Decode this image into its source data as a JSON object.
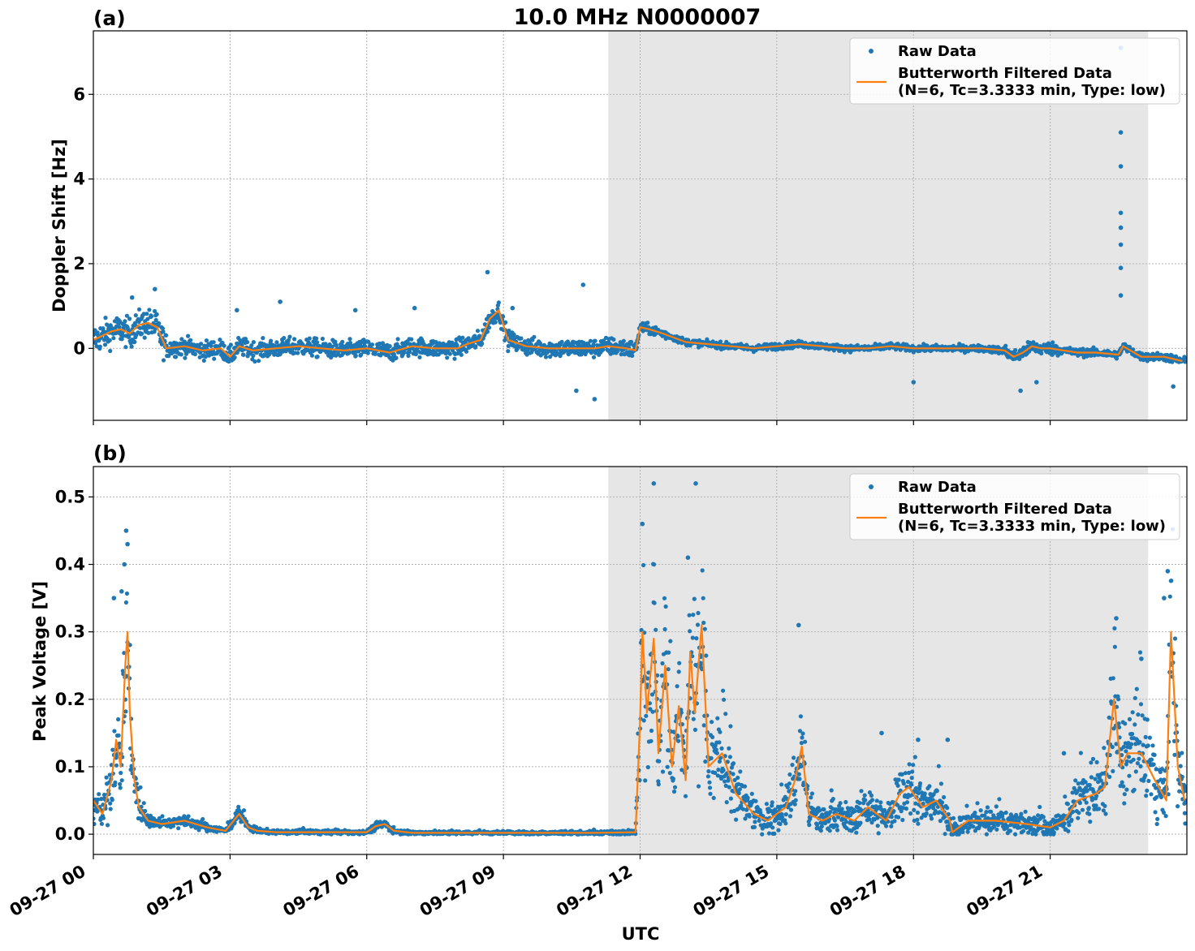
{
  "figure": {
    "title": "10.0 MHz N0000007",
    "xlabel": "UTC"
  },
  "legend": {
    "raw_label": "Raw Data",
    "filtered_label_line1": "Butterworth Filtered Data",
    "filtered_label_line2": "(N=6, Tc=3.3333 min, Type: low)"
  },
  "colors": {
    "raw": "#1f77b4",
    "filtered": "#ff7f0e",
    "shade": "#e6e6e6",
    "grid": "#b0b0b0"
  },
  "chart_data": [
    {
      "type": "scatter",
      "panel_label": "(a)",
      "ylabel": "Doppler Shift [Hz]",
      "x_unit": "hours UTC 2023-09-27",
      "xlim": [
        0,
        24
      ],
      "ylim": [
        -1.7,
        7.5
      ],
      "yticks": [
        0,
        2,
        4,
        6
      ],
      "xticks": [
        0,
        3,
        6,
        9,
        12,
        15,
        18,
        21
      ],
      "xtick_labels": [
        "09-27 00",
        "09-27 03",
        "09-27 06",
        "09-27 09",
        "09-27 12",
        "09-27 15",
        "09-27 18",
        "09-27 21"
      ],
      "grid": true,
      "legend_position": "top-right",
      "shaded_interval": [
        11.3,
        23.15
      ],
      "series": [
        {
          "name": "Butterworth Filtered Data",
          "x": [
            0,
            0.2,
            0.4,
            0.6,
            0.8,
            1.0,
            1.2,
            1.4,
            1.6,
            2.0,
            2.4,
            2.8,
            3.0,
            3.2,
            3.5,
            4.0,
            4.5,
            5.0,
            5.5,
            6.0,
            6.5,
            7.0,
            7.5,
            8.0,
            8.2,
            8.5,
            8.7,
            8.9,
            9.1,
            9.5,
            10.0,
            10.5,
            11.0,
            11.3,
            11.7,
            11.9,
            12.0,
            12.2,
            12.5,
            13.0,
            13.5,
            14.0,
            14.5,
            15.0,
            15.5,
            16.0,
            16.5,
            17.0,
            17.5,
            18.0,
            18.5,
            19.0,
            19.5,
            20.0,
            20.2,
            20.4,
            20.6,
            20.8,
            21.0,
            21.3,
            21.6,
            22.0,
            22.5,
            22.6,
            23.0,
            23.5,
            23.9
          ],
          "y": [
            0.2,
            0.3,
            0.4,
            0.45,
            0.35,
            0.55,
            0.6,
            0.5,
            0.0,
            0.05,
            -0.05,
            0.0,
            -0.2,
            0.05,
            -0.05,
            0.0,
            0.05,
            0.0,
            -0.05,
            0.0,
            -0.1,
            0.05,
            0.0,
            0.0,
            0.1,
            0.2,
            0.7,
            0.9,
            0.2,
            0.05,
            0.0,
            0.0,
            0.0,
            0.05,
            0.0,
            -0.05,
            0.5,
            0.45,
            0.35,
            0.15,
            0.1,
            0.05,
            0.0,
            0.05,
            0.1,
            0.05,
            0.0,
            0.0,
            0.05,
            0.0,
            0.0,
            0.0,
            0.0,
            -0.05,
            -0.2,
            -0.1,
            0.05,
            0.0,
            0.0,
            -0.05,
            -0.1,
            -0.1,
            -0.15,
            0.05,
            -0.2,
            -0.2,
            -0.3
          ]
        },
        {
          "name": "Raw Data",
          "outliers": {
            "x": [
              22.55,
              22.55,
              22.55,
              22.55,
              22.55,
              22.55,
              22.55,
              22.55,
              10.75,
              8.65,
              0.85,
              1.35,
              3.15,
              4.1,
              5.75,
              7.05,
              9.2,
              10.6,
              11.0,
              18.0,
              20.35,
              20.7,
              23.7
            ],
            "y": [
              7.1,
              5.1,
              4.3,
              3.2,
              2.85,
              2.45,
              1.9,
              1.25,
              1.5,
              1.8,
              1.2,
              1.4,
              0.9,
              1.1,
              0.9,
              0.95,
              0.95,
              -1.0,
              -1.2,
              -0.8,
              -1.0,
              -0.8,
              -0.9
            ]
          }
        }
      ]
    },
    {
      "type": "scatter",
      "panel_label": "(b)",
      "ylabel": "Peak Voltage [V]",
      "x_unit": "hours UTC 2023-09-27",
      "xlim": [
        0,
        24
      ],
      "ylim": [
        -0.03,
        0.545
      ],
      "yticks": [
        0.0,
        0.1,
        0.2,
        0.3,
        0.4,
        0.5
      ],
      "ytick_labels": [
        "0.0",
        "0.1",
        "0.2",
        "0.3",
        "0.4",
        "0.5"
      ],
      "xticks": [
        0,
        3,
        6,
        9,
        12,
        15,
        18,
        21
      ],
      "xtick_labels": [
        "09-27 00",
        "09-27 03",
        "09-27 06",
        "09-27 09",
        "09-27 12",
        "09-27 15",
        "09-27 18",
        "09-27 21"
      ],
      "grid": true,
      "legend_position": "top-right",
      "shaded_interval": [
        11.3,
        23.15
      ],
      "series": [
        {
          "name": "Butterworth Filtered Data",
          "x": [
            0,
            0.2,
            0.4,
            0.5,
            0.6,
            0.7,
            0.75,
            0.8,
            0.9,
            1.0,
            1.2,
            1.5,
            2.0,
            2.5,
            2.9,
            3.2,
            3.4,
            3.6,
            4.0,
            5.0,
            6.0,
            6.2,
            6.4,
            6.6,
            7.0,
            8.0,
            9.0,
            10.0,
            11.0,
            11.9,
            12.0,
            12.05,
            12.15,
            12.3,
            12.4,
            12.55,
            12.7,
            12.85,
            13.0,
            13.1,
            13.2,
            13.35,
            13.5,
            13.8,
            14.1,
            14.5,
            14.8,
            15.2,
            15.4,
            15.55,
            15.7,
            16.0,
            16.3,
            16.7,
            17.0,
            17.4,
            17.7,
            17.9,
            18.2,
            18.5,
            18.8,
            18.85,
            19.2,
            19.8,
            20.5,
            21.0,
            21.3,
            21.6,
            22.0,
            22.2,
            22.4,
            22.55,
            22.7,
            23.0,
            23.3,
            23.55,
            23.65,
            23.8,
            23.95
          ],
          "y": [
            0.05,
            0.03,
            0.08,
            0.14,
            0.1,
            0.25,
            0.3,
            0.18,
            0.08,
            0.04,
            0.02,
            0.015,
            0.02,
            0.01,
            0.005,
            0.03,
            0.01,
            0.005,
            0.003,
            0.003,
            0.003,
            0.012,
            0.015,
            0.005,
            0.002,
            0.002,
            0.002,
            0.002,
            0.002,
            0.003,
            0.17,
            0.3,
            0.18,
            0.29,
            0.12,
            0.25,
            0.1,
            0.19,
            0.08,
            0.27,
            0.18,
            0.31,
            0.1,
            0.12,
            0.06,
            0.03,
            0.02,
            0.04,
            0.08,
            0.13,
            0.03,
            0.02,
            0.03,
            0.02,
            0.04,
            0.02,
            0.06,
            0.07,
            0.04,
            0.05,
            0.02,
            0.003,
            0.02,
            0.02,
            0.015,
            0.01,
            0.02,
            0.05,
            0.06,
            0.07,
            0.2,
            0.1,
            0.12,
            0.12,
            0.08,
            0.05,
            0.3,
            0.1,
            0.05
          ]
        },
        {
          "name": "Raw Data",
          "outliers": {
            "x": [
              0.72,
              0.75,
              0.68,
              0.62,
              0.45,
              12.05,
              12.3,
              13.22,
              13.05,
              15.48,
              17.3,
              18.1,
              18.75,
              21.3,
              22.45,
              23.0,
              23.58,
              23.5
            ],
            "y": [
              0.45,
              0.43,
              0.4,
              0.36,
              0.35,
              0.46,
              0.52,
              0.52,
              0.41,
              0.31,
              0.15,
              0.14,
              0.14,
              0.12,
              0.32,
              0.26,
              0.39,
              0.35
            ]
          }
        }
      ]
    }
  ]
}
